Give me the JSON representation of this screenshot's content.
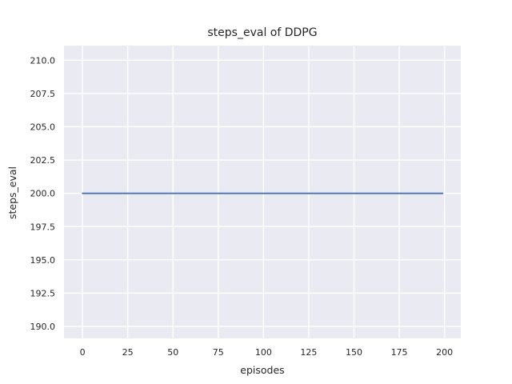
{
  "figure": {
    "background_color": "#ffffff"
  },
  "chart_data": {
    "type": "line",
    "title": "steps_eval of DDPG",
    "xlabel": "episodes",
    "ylabel": "steps_eval",
    "xlim": [
      -10.2,
      209.0
    ],
    "ylim": [
      189.1,
      211.1
    ],
    "xticks": [
      0,
      25,
      50,
      75,
      100,
      125,
      150,
      175,
      200
    ],
    "xtick_labels": [
      "0",
      "25",
      "50",
      "75",
      "100",
      "125",
      "150",
      "175",
      "200"
    ],
    "yticks": [
      190.0,
      192.5,
      195.0,
      197.5,
      200.0,
      202.5,
      205.0,
      207.5,
      210.0
    ],
    "ytick_labels": [
      "190.0",
      "192.5",
      "195.0",
      "197.5",
      "200.0",
      "202.5",
      "205.0",
      "207.5",
      "210.0"
    ],
    "grid": true,
    "legend": null,
    "series": [
      {
        "name": "steps_eval",
        "color": "#4C72B0",
        "x": [
          0,
          199
        ],
        "y": [
          200,
          200
        ],
        "description": "constant value 200 for every evaluation episode from 0 to 199"
      }
    ],
    "style": {
      "plot_background_color": "#EAEAF2",
      "grid_color": "#FFFFFF",
      "text_color": "#262626",
      "line_width": 1.8,
      "grid_width": 1.4
    }
  }
}
